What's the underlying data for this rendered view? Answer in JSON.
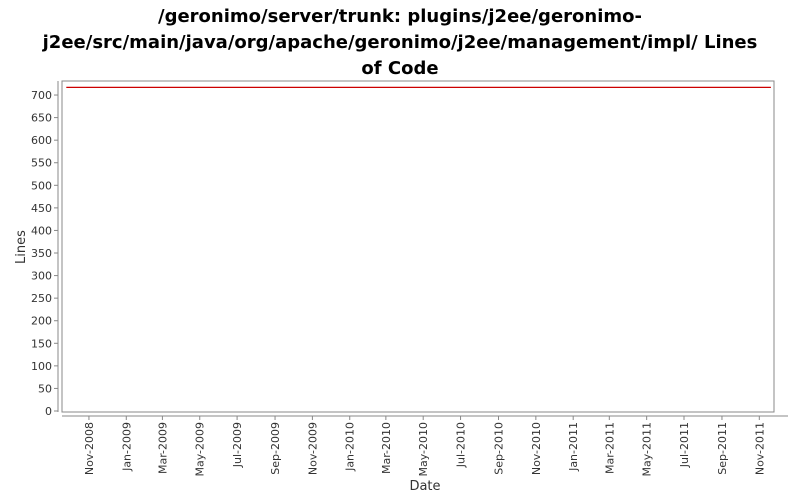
{
  "chart_data": {
    "type": "line",
    "title": "/geronimo/server/trunk: plugins/j2ee/geronimo-j2ee/src/main/java/org/apache/geronimo/j2ee/management/impl/ Lines of Code",
    "title_lines": [
      "/geronimo/server/trunk: plugins/j2ee/geronimo-",
      "j2ee/src/main/java/org/apache/geronimo/j2ee/management/impl/ Lines",
      "of Code"
    ],
    "xlabel": "Date",
    "ylabel": "Lines",
    "ylim": [
      0,
      720
    ],
    "yticks": [
      0,
      50,
      100,
      150,
      200,
      250,
      300,
      350,
      400,
      450,
      500,
      550,
      600,
      650,
      700
    ],
    "xlim": [
      "2008-09-18",
      "2011-11-25"
    ],
    "xticks": [
      {
        "date": "2008-11-01",
        "label": "Nov-2008"
      },
      {
        "date": "2009-01-01",
        "label": "Jan-2009"
      },
      {
        "date": "2009-03-01",
        "label": "Mar-2009"
      },
      {
        "date": "2009-05-01",
        "label": "May-2009"
      },
      {
        "date": "2009-07-01",
        "label": "Jul-2009"
      },
      {
        "date": "2009-09-01",
        "label": "Sep-2009"
      },
      {
        "date": "2009-11-01",
        "label": "Nov-2009"
      },
      {
        "date": "2010-01-01",
        "label": "Jan-2010"
      },
      {
        "date": "2010-03-01",
        "label": "Mar-2010"
      },
      {
        "date": "2010-05-01",
        "label": "May-2010"
      },
      {
        "date": "2010-07-01",
        "label": "Jul-2010"
      },
      {
        "date": "2010-09-01",
        "label": "Sep-2010"
      },
      {
        "date": "2010-11-01",
        "label": "Nov-2010"
      },
      {
        "date": "2011-01-01",
        "label": "Jan-2011"
      },
      {
        "date": "2011-03-01",
        "label": "Mar-2011"
      },
      {
        "date": "2011-05-01",
        "label": "May-2011"
      },
      {
        "date": "2011-07-01",
        "label": "Jul-2011"
      },
      {
        "date": "2011-09-01",
        "label": "Sep-2011"
      },
      {
        "date": "2011-11-01",
        "label": "Nov-2011"
      }
    ],
    "grid": false,
    "series": [
      {
        "color": "#cc0000",
        "points": [
          {
            "x": "2008-09-25",
            "y": 717
          },
          {
            "x": "2011-11-20",
            "y": 717
          }
        ]
      }
    ]
  }
}
